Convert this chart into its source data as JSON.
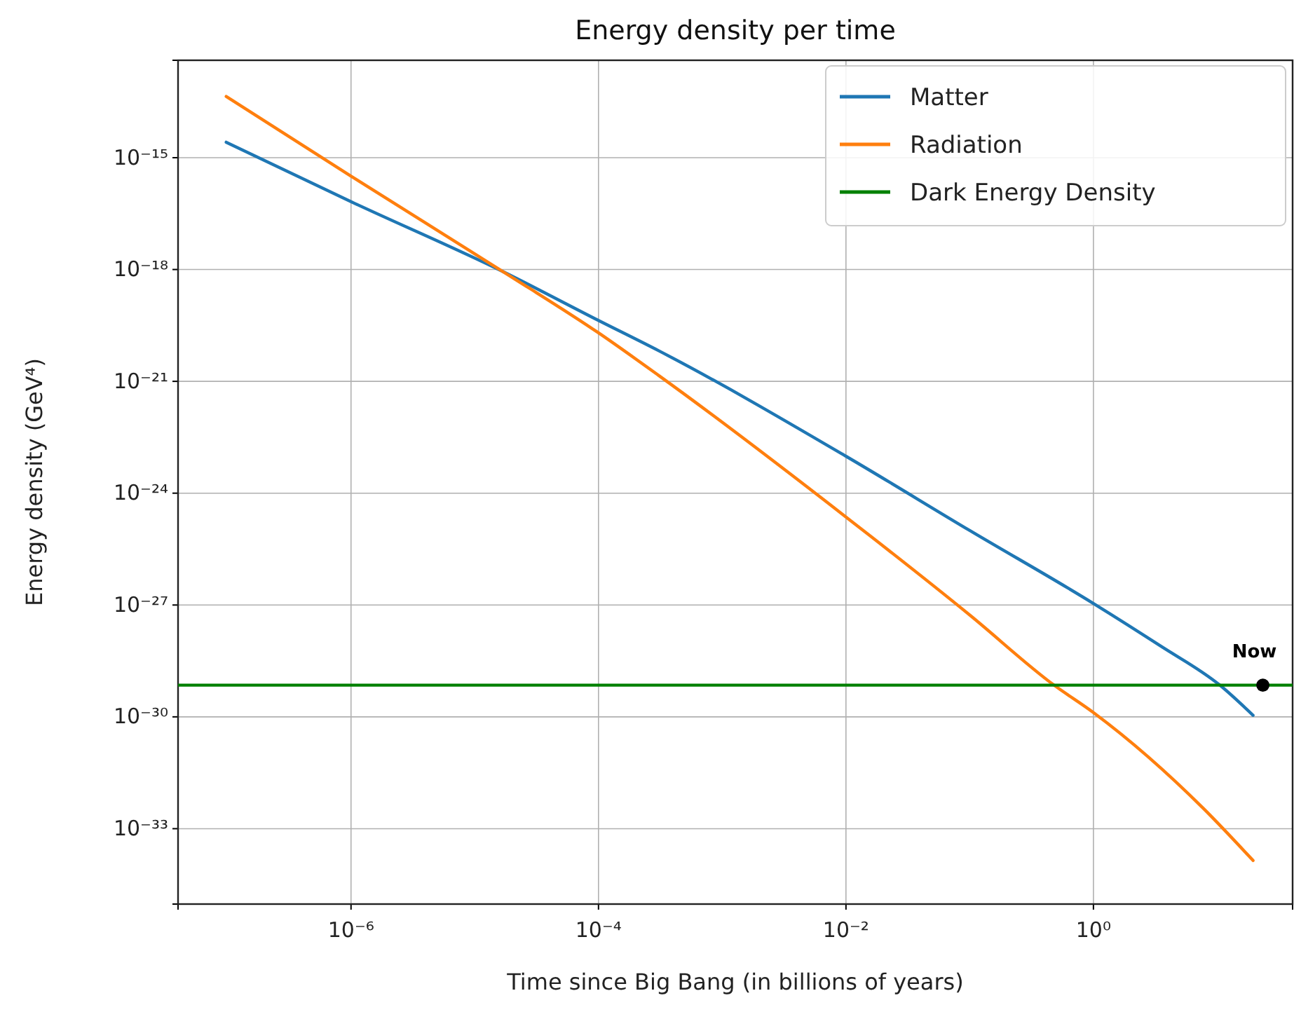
{
  "chart_data": {
    "type": "line",
    "title": "Energy density per time",
    "xlabel": "Time since Big Bang (in billions of years)",
    "ylabel": "Energy density (GeV⁴)",
    "log": "xy",
    "grid": true,
    "legend": "top right",
    "marker": "none",
    "line_style": "solid",
    "xlim": [
      4e-08,
      40.7
    ],
    "ylim": [
      9.5e-36,
      4.1e-13
    ],
    "xticks": [
      {
        "value": 1e-06,
        "label": "10⁻⁶"
      },
      {
        "value": 0.0001,
        "label": "10⁻⁴"
      },
      {
        "value": 0.01,
        "label": "10⁻²"
      },
      {
        "value": 1,
        "label": "10⁰"
      }
    ],
    "yticks": [
      {
        "value": 1e-33,
        "label": "10⁻³³"
      },
      {
        "value": 1e-30,
        "label": "10⁻³⁰"
      },
      {
        "value": 1e-27,
        "label": "10⁻²⁷"
      },
      {
        "value": 1e-24,
        "label": "10⁻²⁴"
      },
      {
        "value": 1e-21,
        "label": "10⁻²¹"
      },
      {
        "value": 1e-18,
        "label": "10⁻¹⁸"
      },
      {
        "value": 1e-15,
        "label": "10⁻¹⁵"
      }
    ],
    "series": [
      {
        "name": "Matter",
        "color": "#1f77b4",
        "x": [
          9.8e-08,
          1e-06,
          1.7e-05,
          0.0001,
          0.00031,
          0.01,
          0.1,
          1,
          3.5,
          10.5,
          19.5
        ],
        "values": [
          2.6e-15,
          6.6e-17,
          8.7e-19,
          4.3e-20,
          6.5e-21,
          9.8e-24,
          1e-25,
          1.1e-27,
          7.9e-29,
          7.1e-30,
          1.1e-30
        ]
      },
      {
        "name": "Radiation",
        "color": "#ff7f0e",
        "x": [
          9.8e-08,
          1e-06,
          1.7e-05,
          0.0001,
          0.00031,
          0.01,
          0.1,
          0.48,
          1,
          7.8,
          19.5
        ],
        "values": [
          4.4e-14,
          3.2e-16,
          8.7e-19,
          2e-20,
          1.4e-21,
          2.3e-25,
          5.4e-28,
          7.1e-30,
          1.3e-30,
          3.4e-33,
          1.4e-34
        ]
      },
      {
        "name": "Dark Energy Density",
        "color": "#008000",
        "x": [
          4e-08,
          40.7
        ],
        "values": [
          7.1e-30,
          7.1e-30
        ]
      },
      {
        "type": "scatter",
        "name": "Now",
        "color": "#000000",
        "marker": "circle",
        "x": [
          23.4
        ],
        "values": [
          7.1e-30
        ]
      }
    ]
  }
}
